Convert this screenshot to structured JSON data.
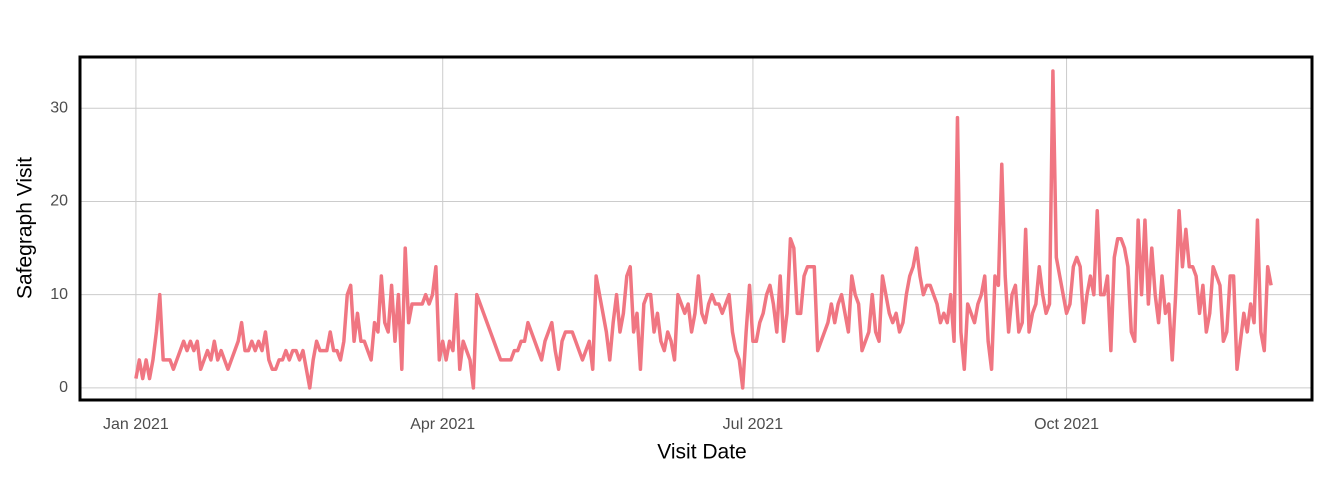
{
  "chart_data": {
    "type": "line",
    "x_label": "Visit Date",
    "y_label": "Safegraph Visit",
    "xlim": [
      -16.4,
      345
    ],
    "xticks": [
      {
        "value": 0,
        "label": "Jan 2021"
      },
      {
        "value": 90,
        "label": "Apr 2021"
      },
      {
        "value": 181,
        "label": "Jul 2021"
      },
      {
        "value": 273,
        "label": "Oct 2021"
      }
    ],
    "ylim": [
      -1.3,
      35.5
    ],
    "yticks": [
      0,
      10,
      20,
      30
    ],
    "grid": true,
    "series": [
      {
        "color": "#f07682",
        "values": [
          1,
          3,
          1,
          3,
          1,
          3,
          6,
          10,
          3,
          3,
          3,
          2,
          3,
          4,
          5,
          4,
          5,
          4,
          5,
          2,
          3,
          4,
          3,
          5,
          3,
          4,
          3,
          2,
          3,
          4,
          5,
          7,
          4,
          4,
          5,
          4,
          5,
          4,
          6,
          3,
          2,
          2,
          3,
          3,
          4,
          3,
          4,
          4,
          3,
          4,
          2,
          0,
          3,
          5,
          4,
          4,
          4,
          6,
          4,
          4,
          3,
          5,
          10,
          11,
          5,
          8,
          5,
          5,
          4,
          3,
          7,
          6,
          12,
          7,
          6,
          11,
          5,
          10,
          2,
          15,
          7,
          9,
          9,
          9,
          9,
          10,
          9,
          10,
          13,
          3,
          5,
          3,
          5,
          4,
          10,
          2,
          5,
          4,
          3,
          0,
          10,
          9,
          8,
          7,
          6,
          5,
          4,
          3,
          3,
          3,
          3,
          4,
          4,
          5,
          5,
          7,
          6,
          5,
          4,
          3,
          5,
          6,
          7,
          4,
          2,
          5,
          6,
          6,
          6,
          5,
          4,
          3,
          4,
          5,
          2,
          12,
          10,
          8,
          6,
          3,
          7,
          10,
          6,
          8,
          12,
          13,
          6,
          8,
          2,
          9,
          10,
          10,
          6,
          8,
          5,
          4,
          6,
          5,
          3,
          10,
          9,
          8,
          9,
          6,
          8,
          12,
          8,
          7,
          9,
          10,
          9,
          9,
          8,
          9,
          10,
          6,
          4,
          3,
          0,
          6,
          11,
          5,
          5,
          7,
          8,
          10,
          11,
          9,
          6,
          12,
          5,
          8,
          16,
          15,
          8,
          8,
          12,
          13,
          13,
          13,
          4,
          5,
          6,
          7,
          9,
          7,
          9,
          10,
          8,
          6,
          12,
          10,
          9,
          4,
          5,
          6,
          10,
          6,
          5,
          12,
          10,
          8,
          7,
          8,
          6,
          7,
          10,
          12,
          13,
          15,
          12,
          10,
          11,
          11,
          10,
          9,
          7,
          8,
          7,
          10,
          5,
          29,
          6,
          2,
          9,
          8,
          7,
          9,
          10,
          12,
          5,
          2,
          12,
          11,
          24,
          12,
          6,
          10,
          11,
          6,
          7,
          17,
          6,
          8,
          9,
          13,
          10,
          8,
          9,
          34,
          14,
          12,
          10,
          8,
          9,
          13,
          14,
          13,
          7,
          10,
          12,
          10,
          19,
          10,
          10,
          12,
          4,
          14,
          16,
          16,
          15,
          13,
          6,
          5,
          18,
          10,
          18,
          9,
          15,
          10,
          7,
          12,
          8,
          9,
          3,
          10,
          19,
          13,
          17,
          13,
          13,
          12,
          8,
          11,
          6,
          8,
          13,
          12,
          11,
          5,
          6,
          12,
          12,
          2,
          5,
          8,
          6,
          9,
          7,
          18,
          6,
          4,
          13,
          11
        ]
      }
    ]
  }
}
